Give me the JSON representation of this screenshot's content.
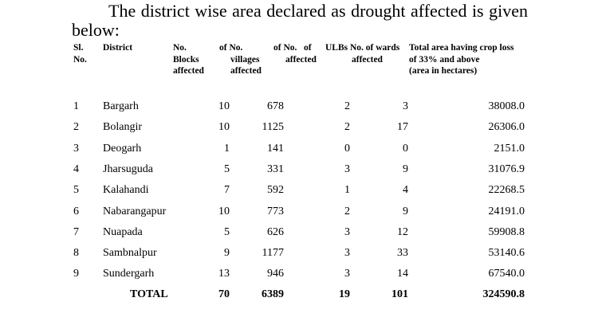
{
  "intro": "The district wise area declared as drought affected is given below:",
  "headers": {
    "sl": [
      "Sl.",
      "No."
    ],
    "district": [
      "District"
    ],
    "blocks": [
      "No.",
      "Blocks",
      "affected"
    ],
    "villages": [
      "of No.",
      "villages",
      "affected"
    ],
    "ulbs": [
      "of No.   of",
      "affected"
    ],
    "wards": [
      "ULBs No. of wards",
      "affected"
    ],
    "area": [
      "Total area having crop loss",
      "of 33% and above",
      "(area  in hectares)"
    ]
  },
  "rows": [
    {
      "sl": "1",
      "district": "Bargarh",
      "blocks": "10",
      "villages": "678",
      "ulbs": "2",
      "wards": "3",
      "area": "38008.0"
    },
    {
      "sl": "2",
      "district": "Bolangir",
      "blocks": "10",
      "villages": "1125",
      "ulbs": "2",
      "wards": "17",
      "area": "26306.0"
    },
    {
      "sl": "3",
      "district": "Deogarh",
      "blocks": "1",
      "villages": "141",
      "ulbs": "0",
      "wards": "0",
      "area": "2151.0"
    },
    {
      "sl": "4",
      "district": "Jharsuguda",
      "blocks": "5",
      "villages": "331",
      "ulbs": "3",
      "wards": "9",
      "area": "31076.9"
    },
    {
      "sl": "5",
      "district": "Kalahandi",
      "blocks": "7",
      "villages": "592",
      "ulbs": "1",
      "wards": "4",
      "area": "22268.5"
    },
    {
      "sl": "6",
      "district": "Nabarangapur",
      "blocks": "10",
      "villages": "773",
      "ulbs": "2",
      "wards": "9",
      "area": "24191.0"
    },
    {
      "sl": "7",
      "district": "Nuapada",
      "blocks": "5",
      "villages": "626",
      "ulbs": "3",
      "wards": "12",
      "area": "59908.8"
    },
    {
      "sl": "8",
      "district": "Sambnalpur",
      "blocks": "9",
      "villages": "1177",
      "ulbs": "3",
      "wards": "33",
      "area": "53140.6"
    },
    {
      "sl": "9",
      "district": "Sundergarh",
      "blocks": "13",
      "villages": "946",
      "ulbs": "3",
      "wards": "14",
      "area": "67540.0"
    }
  ],
  "total": {
    "label": "TOTAL",
    "blocks": "70",
    "villages": "6389",
    "ulbs": "19",
    "wards": "101",
    "area": "324590.8"
  }
}
